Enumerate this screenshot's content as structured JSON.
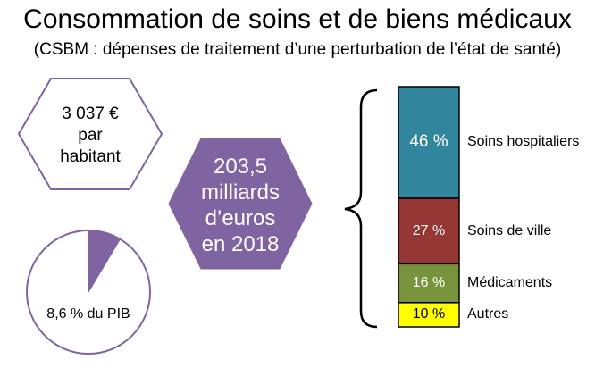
{
  "header": {
    "title": "Consommation de soins et de biens médicaux",
    "subtitle": "(CSBM : dépenses de traitement d’une perturbation de l’état de santé)"
  },
  "per_capita": {
    "line1": "3 037 €",
    "line2": "par",
    "line3": "habitant"
  },
  "total": {
    "line1": "203,5",
    "line2": "milliards",
    "line3": "d’euros",
    "line4": "en 2018"
  },
  "pib": {
    "label": "8,6 % du PIB",
    "value_percent": 8.6
  },
  "colors": {
    "purple": "#8064a2",
    "hosp": "#31859c",
    "ville": "#953735",
    "medic": "#77933c",
    "autres": "#ffff00"
  },
  "chart_data": {
    "type": "bar",
    "stacked": true,
    "categories": [
      "Soins hospitaliers",
      "Soins de ville",
      "Médicaments",
      "Autres"
    ],
    "values": [
      46,
      27,
      16,
      10
    ],
    "value_labels": [
      "46 %",
      "27 %",
      "16 %",
      "10 %"
    ],
    "unit": "%",
    "series_colors": [
      "#31859c",
      "#953735",
      "#77933c",
      "#ffff00"
    ]
  }
}
